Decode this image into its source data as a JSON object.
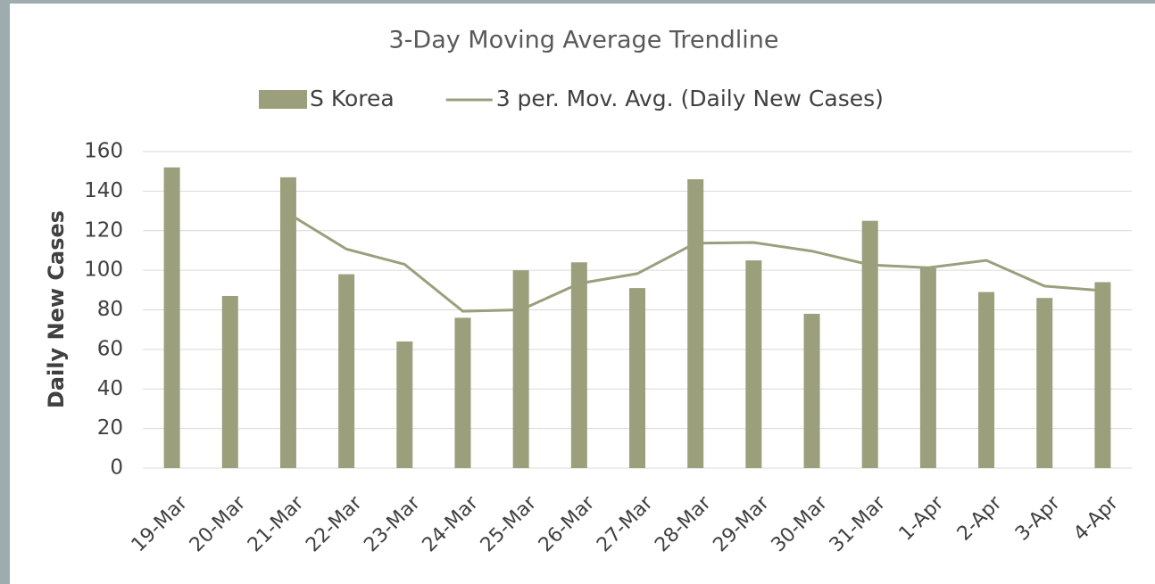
{
  "chart_data": {
    "type": "bar",
    "title": "3-Day Moving Average Trendline",
    "y_label": "Daily New Cases",
    "categories": [
      "19-Mar",
      "20-Mar",
      "21-Mar",
      "22-Mar",
      "23-Mar",
      "24-Mar",
      "25-Mar",
      "26-Mar",
      "27-Mar",
      "28-Mar",
      "29-Mar",
      "30-Mar",
      "31-Mar",
      "1-Apr",
      "2-Apr",
      "3-Apr",
      "4-Apr"
    ],
    "series": [
      {
        "name": "S Korea",
        "type": "bar",
        "color": "#9c9f7c",
        "values": [
          152,
          87,
          147,
          98,
          64,
          76,
          100,
          104,
          91,
          146,
          105,
          78,
          125,
          101,
          89,
          86,
          94
        ]
      },
      {
        "name": "3 per. Mov. Avg. (Daily New Cases)",
        "type": "line",
        "color": "#9c9f7c",
        "values": [
          null,
          null,
          128.7,
          110.7,
          103,
          79.3,
          80,
          93.3,
          98.3,
          113.7,
          114,
          109.7,
          102.7,
          101.3,
          105,
          92,
          89.7
        ]
      }
    ],
    "ylim": [
      0,
      160
    ],
    "yticks": [
      0,
      20,
      40,
      60,
      80,
      100,
      120,
      140,
      160
    ],
    "grid": true
  }
}
